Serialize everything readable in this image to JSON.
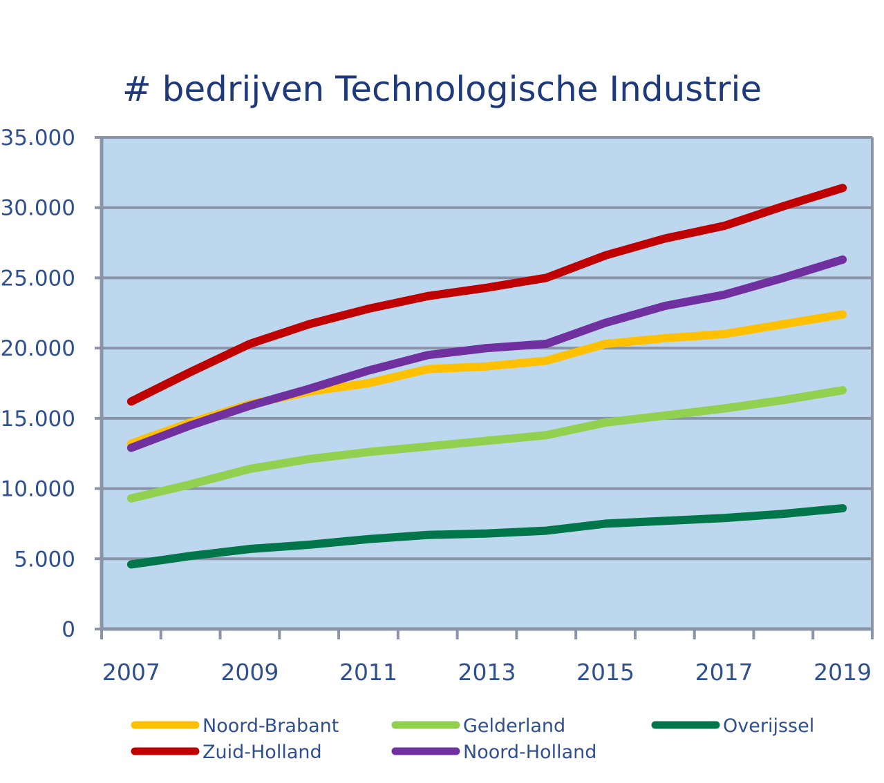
{
  "chart_data": {
    "type": "line",
    "title": "# bedrijven Technologische Industrie",
    "xlabel": "",
    "ylabel": "",
    "x": [
      2007,
      2008,
      2009,
      2010,
      2011,
      2012,
      2013,
      2014,
      2015,
      2016,
      2017,
      2018,
      2019
    ],
    "x_tick_labels": [
      "2007",
      "2009",
      "2011",
      "2013",
      "2015",
      "2017",
      "2019"
    ],
    "y_tick_labels": [
      "0",
      "5.000",
      "10.000",
      "15.000",
      "20.000",
      "25.000",
      "30.000",
      "35.000"
    ],
    "ylim": [
      0,
      35000
    ],
    "grid": true,
    "legend_position": "bottom",
    "background_color": "#bdd7ee",
    "series": [
      {
        "name": "Noord-Brabant",
        "color": "#ffc000",
        "values": [
          13200,
          14700,
          16000,
          16900,
          17500,
          18500,
          18700,
          19100,
          20300,
          20700,
          21000,
          21700,
          22400
        ]
      },
      {
        "name": "Gelderland",
        "color": "#92d050",
        "values": [
          9300,
          10300,
          11400,
          12100,
          12600,
          13000,
          13400,
          13800,
          14700,
          15200,
          15700,
          16300,
          17000
        ]
      },
      {
        "name": "Overijssel",
        "color": "#00764a",
        "values": [
          4600,
          5200,
          5700,
          6000,
          6400,
          6700,
          6800,
          7000,
          7500,
          7700,
          7900,
          8200,
          8600
        ]
      },
      {
        "name": "Zuid-Holland",
        "color": "#c00000",
        "values": [
          16200,
          18300,
          20300,
          21700,
          22800,
          23700,
          24300,
          25000,
          26600,
          27800,
          28700,
          30100,
          31400
        ]
      },
      {
        "name": "Noord-Holland",
        "color": "#7030a0",
        "values": [
          12900,
          14500,
          15900,
          17100,
          18400,
          19500,
          20000,
          20300,
          21800,
          23000,
          23800,
          25000,
          26300
        ]
      }
    ]
  }
}
